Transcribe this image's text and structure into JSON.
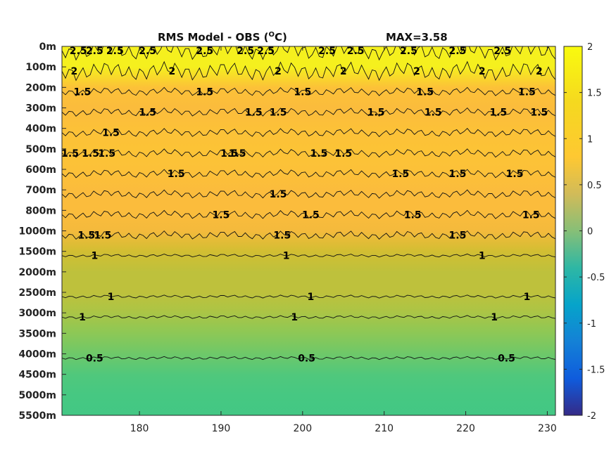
{
  "chart_data": {
    "type": "heatmap",
    "title": "RMS Model - OBS (°C)",
    "title_left": "RMS Model - OBS (",
    "title_sup": "O",
    "title_right": "C)",
    "max_label": "MAX=3.58",
    "x_ticks": [
      180,
      190,
      200,
      210,
      220,
      230
    ],
    "xlim": [
      170.5,
      231
    ],
    "y_ticks": [
      "0m",
      "100m",
      "200m",
      "300m",
      "400m",
      "500m",
      "600m",
      "700m",
      "800m",
      "1000m",
      "1500m",
      "2000m",
      "2500m",
      "3000m",
      "3500m",
      "4000m",
      "4500m",
      "5000m",
      "5500m"
    ],
    "colorbar": {
      "ticks": [
        "2",
        "1.5",
        "1",
        "0.5",
        "0",
        "-0.5",
        "-1",
        "-1.5",
        "-2"
      ],
      "range": [
        -2,
        2
      ],
      "colormap": "parula"
    },
    "field_by_level": [
      {
        "level": "0m",
        "value": 2.2
      },
      {
        "level": "100m",
        "value": 2.05
      },
      {
        "level": "200m",
        "value": 1.55
      },
      {
        "level": "300m",
        "value": 1.45
      },
      {
        "level": "400m",
        "value": 1.55
      },
      {
        "level": "500m",
        "value": 1.6
      },
      {
        "level": "600m",
        "value": 1.55
      },
      {
        "level": "700m",
        "value": 1.45
      },
      {
        "level": "800m",
        "value": 1.45
      },
      {
        "level": "1000m",
        "value": 1.35
      },
      {
        "level": "1500m",
        "value": 1.1
      },
      {
        "level": "2000m",
        "value": 1.0
      },
      {
        "level": "2500m",
        "value": 1.0
      },
      {
        "level": "3000m",
        "value": 0.9
      },
      {
        "level": "3500m",
        "value": 0.75
      },
      {
        "level": "4000m",
        "value": 0.6
      },
      {
        "level": "4500m",
        "value": 0.45
      },
      {
        "level": "5000m",
        "value": 0.4
      },
      {
        "level": "5500m",
        "value": 0.38
      }
    ],
    "contour_labels": [
      {
        "text": "2.5",
        "x": 172.5,
        "level": "0m"
      },
      {
        "text": "2.5",
        "x": 174.5,
        "level": "0m"
      },
      {
        "text": "2.5",
        "x": 177,
        "level": "0m"
      },
      {
        "text": "2.5",
        "x": 181,
        "level": "0m"
      },
      {
        "text": "2.5",
        "x": 188,
        "level": "0m"
      },
      {
        "text": "2.5",
        "x": 193,
        "level": "0m"
      },
      {
        "text": "2.5",
        "x": 195.5,
        "level": "0m"
      },
      {
        "text": "2.5",
        "x": 203,
        "level": "0m"
      },
      {
        "text": "2.5",
        "x": 206.5,
        "level": "0m"
      },
      {
        "text": "2.5",
        "x": 213,
        "level": "0m"
      },
      {
        "text": "2.5",
        "x": 219,
        "level": "0m"
      },
      {
        "text": "2.5",
        "x": 224.5,
        "level": "0m"
      },
      {
        "text": "2",
        "x": 172,
        "level": "100m"
      },
      {
        "text": "2",
        "x": 184,
        "level": "100m"
      },
      {
        "text": "2",
        "x": 197,
        "level": "100m"
      },
      {
        "text": "2",
        "x": 205,
        "level": "100m"
      },
      {
        "text": "2",
        "x": 214,
        "level": "100m"
      },
      {
        "text": "2",
        "x": 222,
        "level": "100m"
      },
      {
        "text": "2",
        "x": 229,
        "level": "100m"
      },
      {
        "text": "1.5",
        "x": 173,
        "level": "200m"
      },
      {
        "text": "1.5",
        "x": 188,
        "level": "200m"
      },
      {
        "text": "1.5",
        "x": 200,
        "level": "200m"
      },
      {
        "text": "1.5",
        "x": 215,
        "level": "200m"
      },
      {
        "text": "1.5",
        "x": 227.5,
        "level": "200m"
      },
      {
        "text": "1.5",
        "x": 176.5,
        "level": "400m"
      },
      {
        "text": "1.5",
        "x": 181,
        "level": "300m"
      },
      {
        "text": "1.5",
        "x": 194,
        "level": "300m"
      },
      {
        "text": "1.5",
        "x": 197,
        "level": "300m"
      },
      {
        "text": "1.5",
        "x": 209,
        "level": "300m"
      },
      {
        "text": "1.5",
        "x": 216,
        "level": "300m"
      },
      {
        "text": "1.5",
        "x": 224,
        "level": "300m"
      },
      {
        "text": "1.5",
        "x": 229,
        "level": "300m"
      },
      {
        "text": "1.5",
        "x": 171.5,
        "level": "500m"
      },
      {
        "text": "1.5",
        "x": 174,
        "level": "500m"
      },
      {
        "text": "1.5",
        "x": 176,
        "level": "500m"
      },
      {
        "text": "1.5",
        "x": 191,
        "level": "500m"
      },
      {
        "text": "1.5",
        "x": 192,
        "level": "500m"
      },
      {
        "text": "1.5",
        "x": 202,
        "level": "500m"
      },
      {
        "text": "1.5",
        "x": 205,
        "level": "500m"
      },
      {
        "text": "1.5",
        "x": 184.5,
        "level": "600m"
      },
      {
        "text": "1.5",
        "x": 197,
        "level": "700m"
      },
      {
        "text": "1.5",
        "x": 212,
        "level": "600m"
      },
      {
        "text": "1.5",
        "x": 219,
        "level": "600m"
      },
      {
        "text": "1.5",
        "x": 226,
        "level": "600m"
      },
      {
        "text": "1.5",
        "x": 173.5,
        "level": "1000m"
      },
      {
        "text": "1.5",
        "x": 175.5,
        "level": "1000m"
      },
      {
        "text": "1.5",
        "x": 190,
        "level": "800m"
      },
      {
        "text": "1.5",
        "x": 197.5,
        "level": "1000m"
      },
      {
        "text": "1.5",
        "x": 201,
        "level": "800m"
      },
      {
        "text": "1.5",
        "x": 213.5,
        "level": "800m"
      },
      {
        "text": "1.5",
        "x": 219,
        "level": "1000m"
      },
      {
        "text": "1.5",
        "x": 228,
        "level": "800m"
      },
      {
        "text": "1",
        "x": 174.5,
        "level": "1500m"
      },
      {
        "text": "1",
        "x": 198,
        "level": "1500m"
      },
      {
        "text": "1",
        "x": 222,
        "level": "1500m"
      },
      {
        "text": "1",
        "x": 176.5,
        "level": "2500m"
      },
      {
        "text": "1",
        "x": 173,
        "level": "3000m"
      },
      {
        "text": "1",
        "x": 201,
        "level": "2500m"
      },
      {
        "text": "1",
        "x": 227.5,
        "level": "2500m"
      },
      {
        "text": "1",
        "x": 199,
        "level": "3000m"
      },
      {
        "text": "1",
        "x": 223.5,
        "level": "3000m"
      },
      {
        "text": "0.5",
        "x": 174.5,
        "level": "4000m"
      },
      {
        "text": "0.5",
        "x": 200.5,
        "level": "4000m"
      },
      {
        "text": "0.5",
        "x": 225,
        "level": "4000m"
      }
    ]
  }
}
